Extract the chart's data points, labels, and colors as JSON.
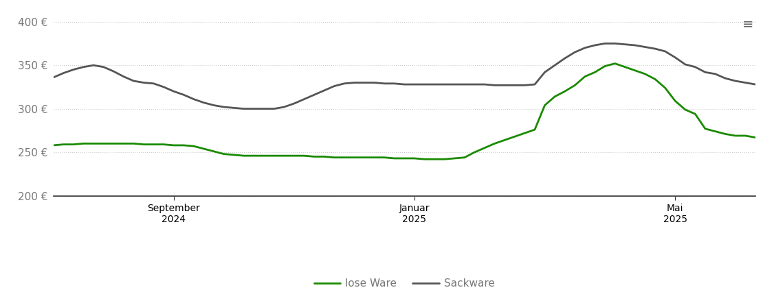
{
  "background_color": "#ffffff",
  "y_ticks": [
    200,
    250,
    300,
    350,
    400
  ],
  "y_tick_labels": [
    "200 €",
    "250 €",
    "300 €",
    "350 €",
    "400 €"
  ],
  "ylim": [
    185,
    415
  ],
  "x_tick_labels": [
    "September\n2024",
    "Januar\n2025",
    "Mai\n2025"
  ],
  "lose_ware_color": "#1a8a00",
  "sackware_color": "#555555",
  "line_width": 2.0,
  "grid_color": "#cccccc",
  "grid_linestyle": "dotted",
  "legend_labels": [
    "lose Ware",
    "Sackware"
  ],
  "lose_ware_x": [
    0,
    1,
    2,
    3,
    4,
    5,
    6,
    7,
    8,
    9,
    10,
    11,
    12,
    13,
    14,
    15,
    16,
    17,
    18,
    19,
    20,
    21,
    22,
    23,
    24,
    25,
    26,
    27,
    28,
    29,
    30,
    31,
    32,
    33,
    34,
    35,
    36,
    37,
    38,
    39,
    40,
    41,
    42,
    43,
    44,
    45,
    46,
    47,
    48,
    49,
    50,
    51,
    52,
    53,
    54,
    55,
    56,
    57,
    58,
    59,
    60,
    61,
    62,
    63,
    64,
    65,
    66,
    67,
    68,
    69,
    70
  ],
  "lose_ware_y": [
    258,
    259,
    259,
    260,
    260,
    260,
    260,
    260,
    260,
    259,
    259,
    259,
    258,
    258,
    257,
    254,
    251,
    248,
    247,
    246,
    246,
    246,
    246,
    246,
    246,
    246,
    245,
    245,
    244,
    244,
    244,
    244,
    244,
    244,
    243,
    243,
    243,
    242,
    242,
    242,
    243,
    244,
    250,
    255,
    260,
    264,
    268,
    272,
    276,
    304,
    314,
    320,
    327,
    337,
    342,
    349,
    352,
    348,
    344,
    340,
    334,
    324,
    309,
    299,
    294,
    277,
    274,
    271,
    269,
    269,
    267
  ],
  "sackware_x": [
    0,
    1,
    2,
    3,
    4,
    5,
    6,
    7,
    8,
    9,
    10,
    11,
    12,
    13,
    14,
    15,
    16,
    17,
    18,
    19,
    20,
    21,
    22,
    23,
    24,
    25,
    26,
    27,
    28,
    29,
    30,
    31,
    32,
    33,
    34,
    35,
    36,
    37,
    38,
    39,
    40,
    41,
    42,
    43,
    44,
    45,
    46,
    47,
    48,
    49,
    50,
    51,
    52,
    53,
    54,
    55,
    56,
    57,
    58,
    59,
    60,
    61,
    62,
    63,
    64,
    65,
    66,
    67,
    68,
    69,
    70
  ],
  "sackware_y": [
    336,
    341,
    345,
    348,
    350,
    348,
    343,
    337,
    332,
    330,
    329,
    325,
    320,
    316,
    311,
    307,
    304,
    302,
    301,
    300,
    300,
    300,
    300,
    302,
    306,
    311,
    316,
    321,
    326,
    329,
    330,
    330,
    330,
    329,
    329,
    328,
    328,
    328,
    328,
    328,
    328,
    328,
    328,
    328,
    327,
    327,
    327,
    327,
    328,
    342,
    350,
    358,
    365,
    370,
    373,
    375,
    375,
    374,
    373,
    371,
    369,
    366,
    359,
    351,
    348,
    342,
    340,
    335,
    332,
    330,
    328
  ],
  "x_tick_positions": [
    12,
    36,
    62
  ],
  "xlim": [
    0,
    70
  ],
  "font_size": 11,
  "tick_color": "#777777",
  "spine_color": "#333333",
  "hamburger_char": "≡"
}
